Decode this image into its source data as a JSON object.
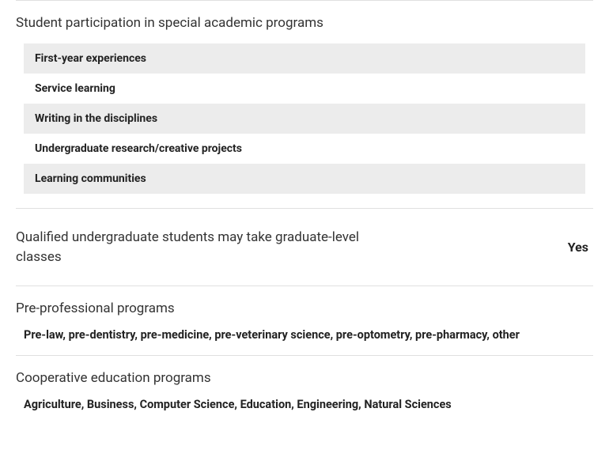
{
  "sections": {
    "participation": {
      "title": "Student participation in special academic programs",
      "items": [
        "First-year experiences",
        "Service learning",
        "Writing in the disciplines",
        "Undergraduate research/creative projects",
        "Learning communities"
      ]
    },
    "graduate_classes": {
      "label": "Qualified undergraduate students may take graduate-level classes",
      "value": "Yes"
    },
    "pre_professional": {
      "title": "Pre-professional programs",
      "text": "Pre-law, pre-dentistry, pre-medicine, pre-veterinary science, pre-optometry, pre-pharmacy, other"
    },
    "cooperative": {
      "title": "Cooperative education programs",
      "text": "Agriculture, Business, Computer Science, Education, Engineering, Natural Sciences"
    }
  },
  "colors": {
    "divider": "#e0e0e0",
    "row_alt_bg": "#ececec",
    "text_primary": "#333333",
    "text_bold": "#222222",
    "background": "#ffffff"
  }
}
